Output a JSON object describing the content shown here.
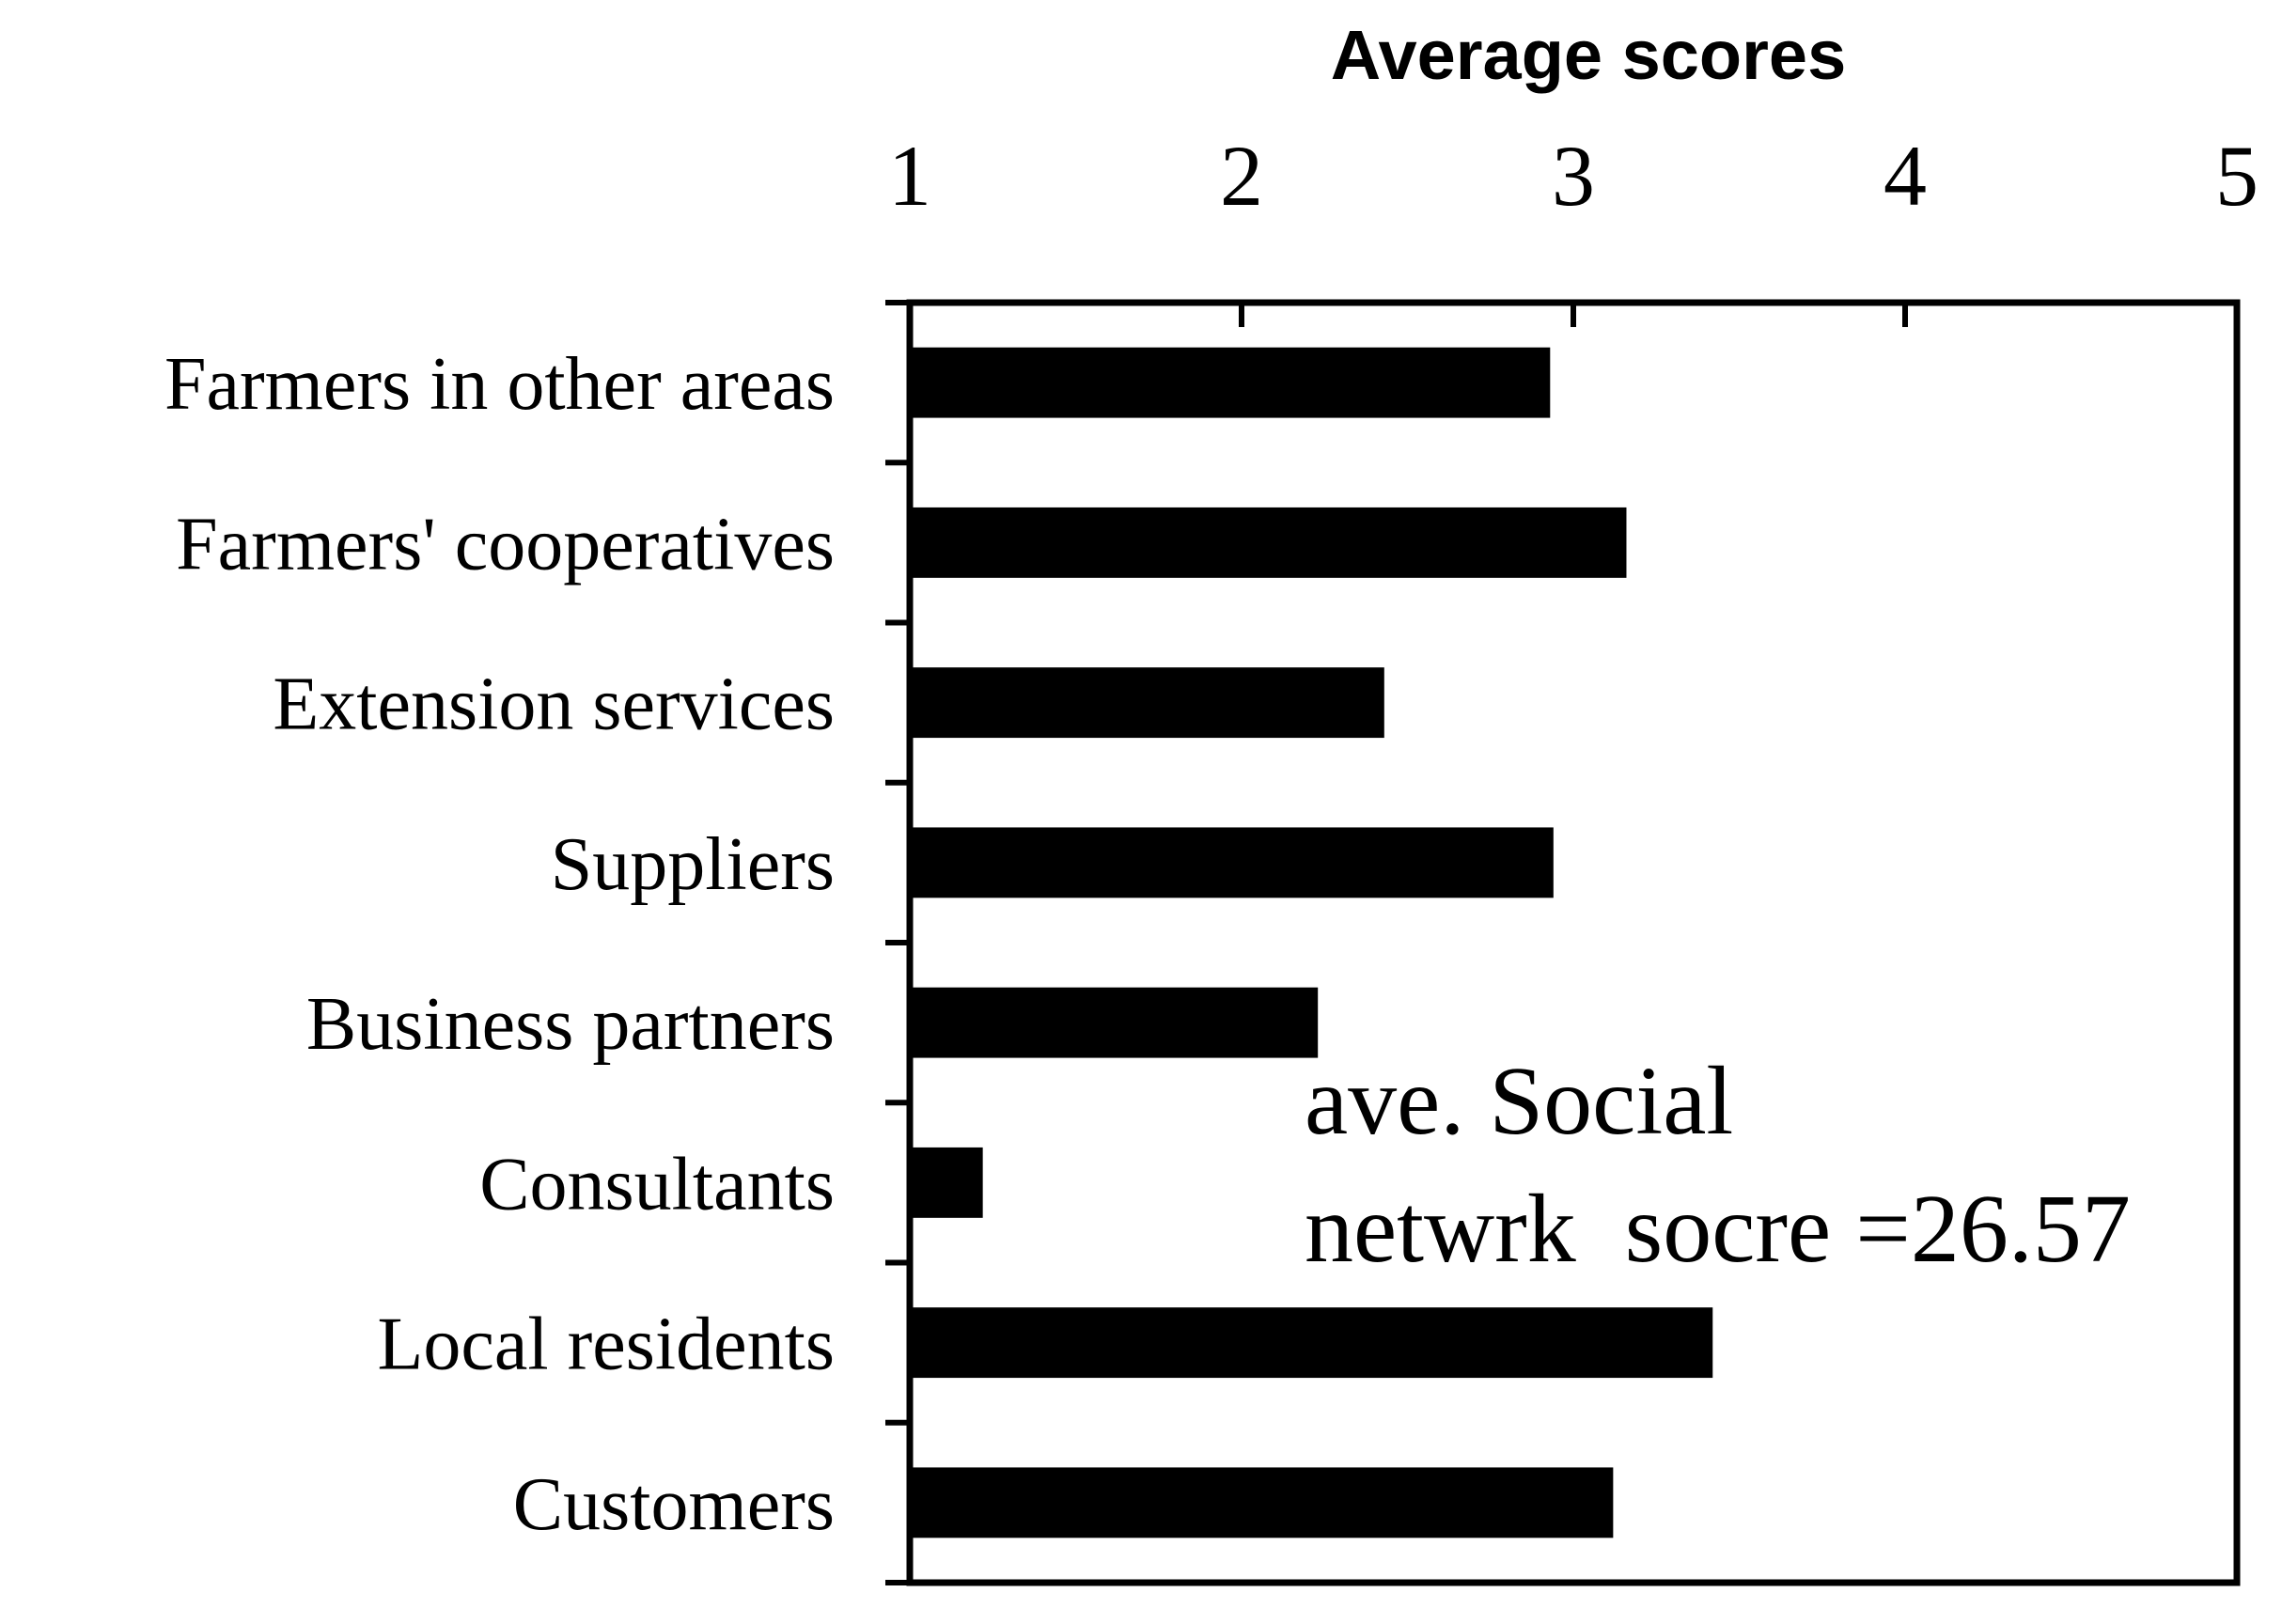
{
  "chart_data": {
    "type": "bar",
    "orientation": "horizontal",
    "xlabel": "Average scores",
    "xlabel_position": "top",
    "xlim": [
      1,
      5
    ],
    "xticks": [
      "1",
      "2",
      "3",
      "4",
      "5"
    ],
    "categories": [
      "Farmers in other areas",
      "Farmers' cooperatives",
      "Extension services",
      "Suppliers",
      "Business partners",
      "Consultants",
      "Local residents",
      "Customers"
    ],
    "values": [
      2.93,
      3.16,
      2.43,
      2.94,
      2.23,
      1.22,
      3.42,
      3.12
    ],
    "bar_color": "#000000",
    "grid": false,
    "annotation": {
      "line1": "ave. Social",
      "line2": "netwrk  socre =26.57"
    }
  }
}
